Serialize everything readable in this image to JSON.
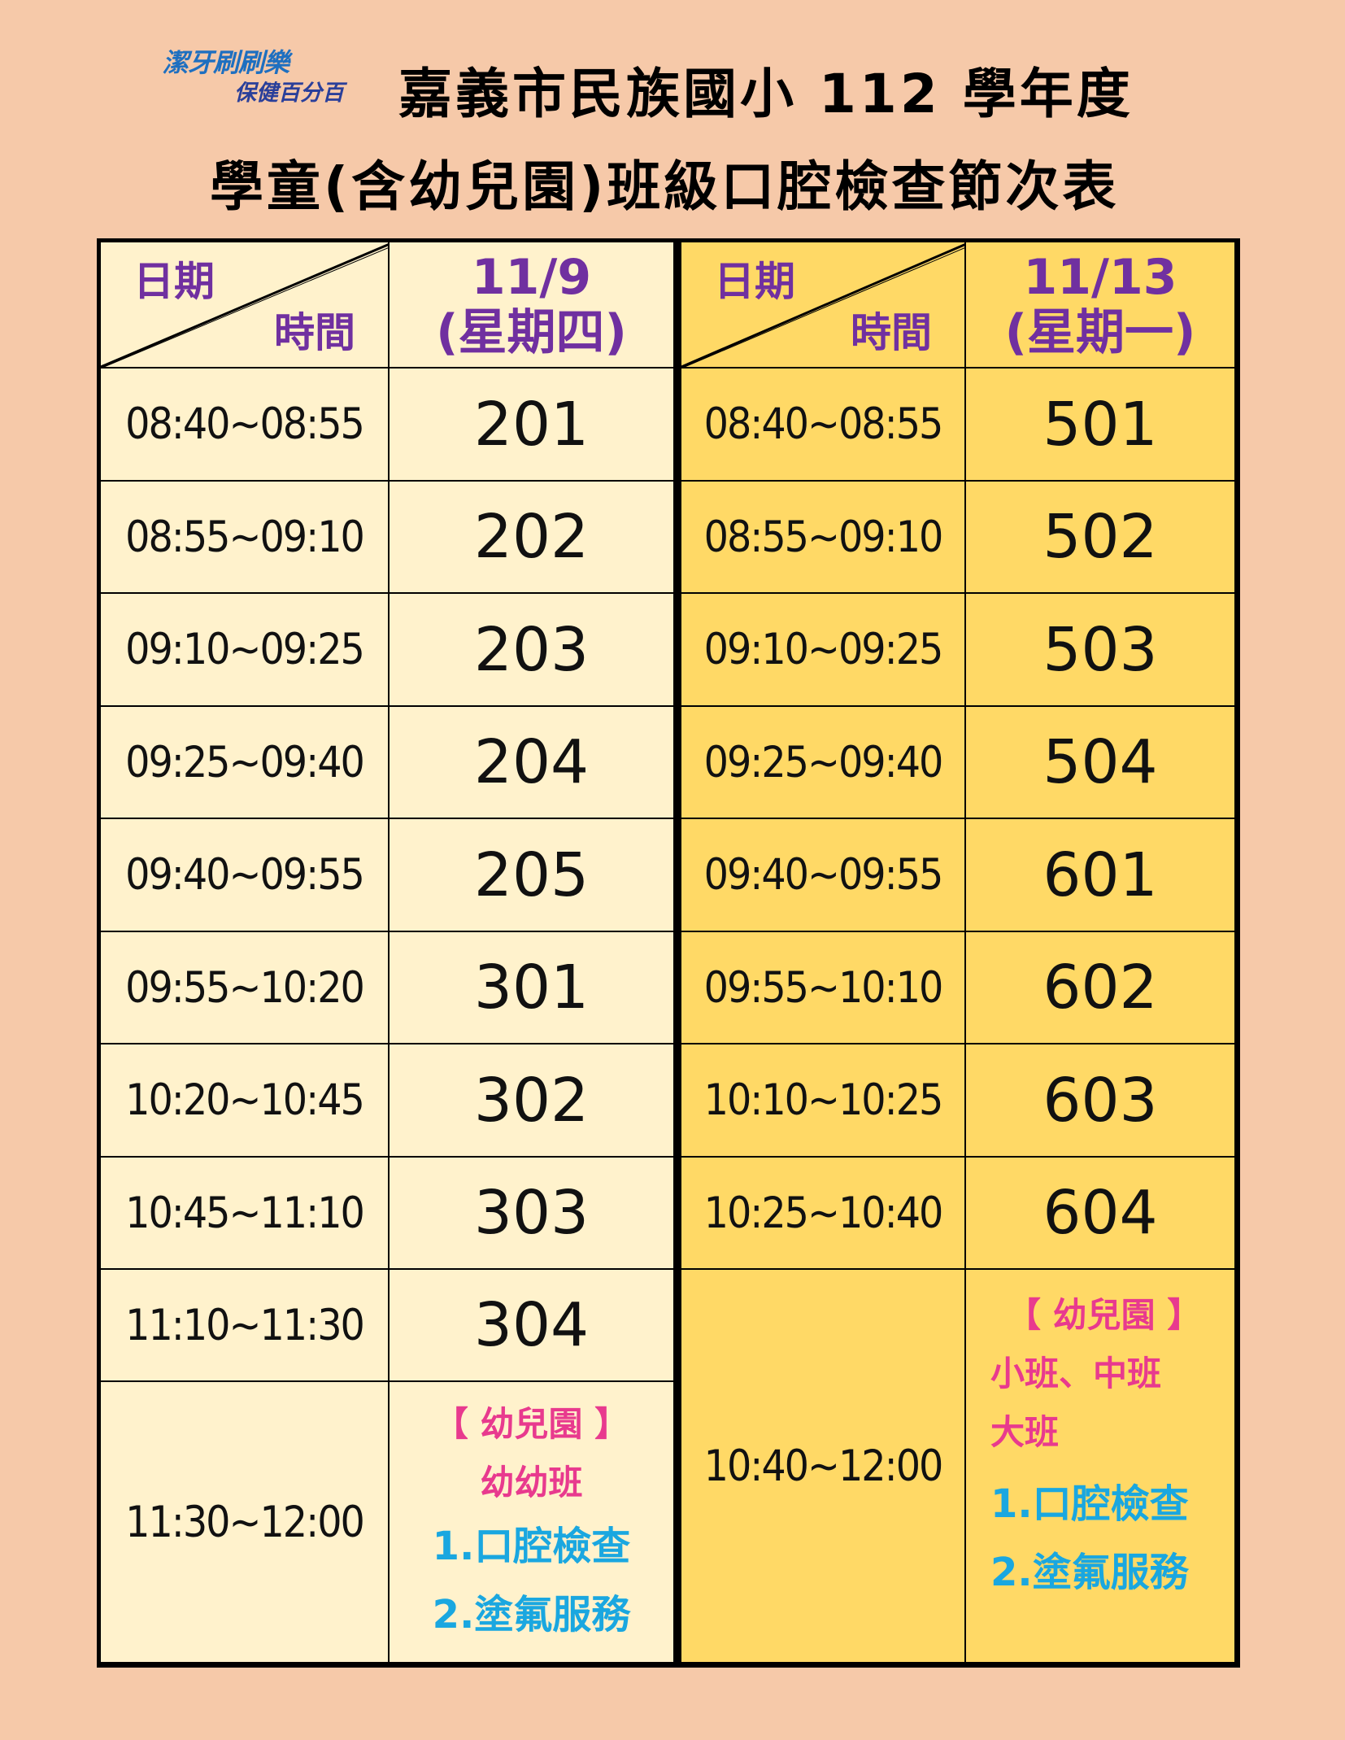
{
  "logo": {
    "line1": "潔牙刷刷樂",
    "line2": "保健百分百"
  },
  "title": {
    "line1": "嘉義市民族國小 112 學年度",
    "line2": "學童(含幼兒園)班級口腔檢查節次表"
  },
  "colors": {
    "background": "#f6c9a9",
    "left_table": "#fff2cc",
    "right_table": "#ffd966",
    "header_text": "#7030a0",
    "note_pink": "#e83a8e",
    "note_cyan": "#1aa7e0"
  },
  "left": {
    "corner_top": "日期",
    "corner_bottom": "時間",
    "date": "11/9",
    "weekday": "(星期四)",
    "rows": [
      {
        "time": "08:40~08:55",
        "class": "201"
      },
      {
        "time": "08:55~09:10",
        "class": "202"
      },
      {
        "time": "09:10~09:25",
        "class": "203"
      },
      {
        "time": "09:25~09:40",
        "class": "204"
      },
      {
        "time": "09:40~09:55",
        "class": "205"
      },
      {
        "time": "09:55~10:20",
        "class": "301"
      },
      {
        "time": "10:20~10:45",
        "class": "302"
      },
      {
        "time": "10:45~11:10",
        "class": "303"
      },
      {
        "time": "11:10~11:30",
        "class": "304"
      }
    ],
    "last": {
      "time": "11:30~12:00",
      "note_title": "【 幼兒園 】",
      "note_groups": [
        "幼幼班"
      ],
      "items": [
        "1.口腔檢查",
        "2.塗氟服務"
      ]
    }
  },
  "right": {
    "corner_top": "日期",
    "corner_bottom": "時間",
    "date": "11/13",
    "weekday": "(星期一)",
    "rows": [
      {
        "time": "08:40~08:55",
        "class": "501"
      },
      {
        "time": "08:55~09:10",
        "class": "502"
      },
      {
        "time": "09:10~09:25",
        "class": "503"
      },
      {
        "time": "09:25~09:40",
        "class": "504"
      },
      {
        "time": "09:40~09:55",
        "class": "601"
      },
      {
        "time": "09:55~10:10",
        "class": "602"
      },
      {
        "time": "10:10~10:25",
        "class": "603"
      },
      {
        "time": "10:25~10:40",
        "class": "604"
      }
    ],
    "last": {
      "time": "10:40~12:00",
      "note_title": "【 幼兒園 】",
      "note_groups": [
        "小班、中班",
        "大班"
      ],
      "items": [
        "1.口腔檢查",
        "2.塗氟服務"
      ]
    }
  }
}
